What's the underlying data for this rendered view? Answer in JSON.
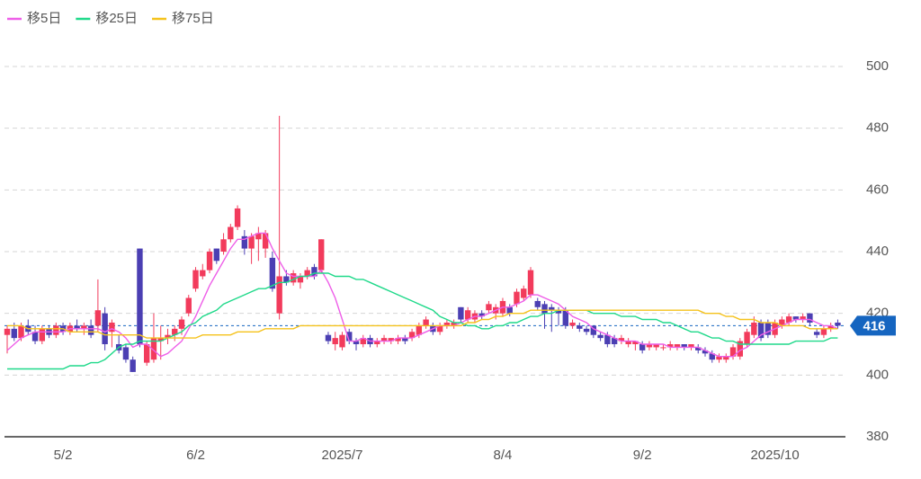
{
  "chart_data": {
    "type": "candlestick",
    "up_color": "#f23b5c",
    "down_color": "#4b3fb3",
    "ylim": [
      380,
      500
    ],
    "yticks": [
      380,
      400,
      420,
      440,
      460,
      480,
      500
    ],
    "grid": true,
    "current": 416,
    "current_color": "#1565c0",
    "categories": [
      null,
      null,
      null,
      null,
      null,
      null,
      null,
      null,
      "5/2",
      null,
      null,
      null,
      null,
      null,
      null,
      null,
      null,
      null,
      null,
      null,
      null,
      null,
      null,
      null,
      null,
      null,
      null,
      "6/2",
      null,
      null,
      null,
      null,
      null,
      null,
      null,
      null,
      null,
      null,
      null,
      null,
      null,
      null,
      null,
      null,
      null,
      null,
      null,
      null,
      "2025/7",
      null,
      null,
      null,
      null,
      null,
      null,
      null,
      null,
      null,
      null,
      null,
      null,
      null,
      null,
      null,
      null,
      null,
      null,
      null,
      null,
      null,
      null,
      "8/4",
      null,
      null,
      null,
      null,
      null,
      null,
      null,
      null,
      null,
      null,
      null,
      null,
      null,
      null,
      null,
      null,
      null,
      null,
      null,
      "9/2",
      null,
      null,
      null,
      null,
      null,
      null,
      null,
      null,
      null,
      null,
      null,
      null,
      null,
      null,
      null,
      null,
      null,
      null,
      "2025/10",
      null,
      null,
      null,
      null,
      null,
      null,
      null,
      null,
      null
    ],
    "ohlc": [
      [
        413,
        416,
        407,
        415
      ],
      [
        415,
        417,
        411,
        412
      ],
      [
        412,
        417,
        411,
        416
      ],
      [
        416,
        418,
        413,
        414
      ],
      [
        414,
        416,
        410,
        411
      ],
      [
        411,
        416,
        410,
        415
      ],
      [
        415,
        416,
        412,
        413
      ],
      [
        413,
        417,
        412,
        416
      ],
      [
        416,
        417,
        413,
        414
      ],
      [
        414,
        417,
        413,
        416
      ],
      [
        416,
        418,
        414,
        415
      ],
      [
        415,
        417,
        413,
        416
      ],
      [
        416,
        418,
        412,
        413
      ],
      [
        416,
        431,
        414,
        421
      ],
      [
        420,
        422,
        408,
        410
      ],
      [
        414,
        418,
        409,
        417
      ],
      [
        410,
        413,
        407,
        408
      ],
      [
        409,
        410,
        404,
        405
      ],
      [
        405,
        406,
        401,
        401
      ],
      [
        441,
        441,
        409,
        410
      ],
      [
        404,
        411,
        403,
        410
      ],
      [
        405,
        420,
        404,
        412
      ],
      [
        411,
        416,
        405,
        412
      ],
      [
        412,
        415,
        410,
        413
      ],
      [
        413,
        416,
        411,
        415
      ],
      [
        415,
        419,
        413,
        418
      ],
      [
        420,
        426,
        419,
        425
      ],
      [
        428,
        435,
        427,
        434
      ],
      [
        432,
        436,
        431,
        434
      ],
      [
        434,
        441,
        433,
        440
      ],
      [
        441,
        441,
        436,
        437
      ],
      [
        440,
        446,
        439,
        444
      ],
      [
        444,
        449,
        443,
        448
      ],
      [
        448,
        455,
        447,
        454
      ],
      [
        445,
        447,
        439,
        441
      ],
      [
        441,
        446,
        436,
        445
      ],
      [
        444,
        448,
        437,
        446
      ],
      [
        441,
        447,
        438,
        446
      ],
      [
        438,
        440,
        427,
        428
      ],
      [
        420,
        484,
        418,
        432
      ],
      [
        432,
        434,
        429,
        430
      ],
      [
        430,
        434,
        429,
        433
      ],
      [
        430,
        433,
        428,
        432
      ],
      [
        432,
        435,
        431,
        434
      ],
      [
        435,
        436,
        431,
        432
      ],
      [
        434,
        444,
        433,
        444
      ],
      [
        413,
        414,
        410,
        411
      ],
      [
        410,
        414,
        408,
        412
      ],
      [
        409,
        414,
        408,
        413
      ],
      [
        414,
        415,
        410,
        411
      ],
      [
        411,
        412,
        408,
        410
      ],
      [
        410,
        413,
        409,
        412
      ],
      [
        412,
        413,
        409,
        410
      ],
      [
        410,
        412,
        409,
        411
      ],
      [
        411,
        413,
        410,
        412
      ],
      [
        411,
        412,
        410,
        412
      ],
      [
        411,
        413,
        410,
        412
      ],
      [
        412,
        413,
        410,
        411
      ],
      [
        412,
        415,
        411,
        414
      ],
      [
        413,
        417,
        412,
        416
      ],
      [
        416,
        419,
        415,
        418
      ],
      [
        416,
        417,
        413,
        414
      ],
      [
        414,
        417,
        413,
        416
      ],
      [
        416,
        418,
        415,
        417
      ],
      [
        416,
        418,
        415,
        417
      ],
      [
        422,
        422,
        417,
        418
      ],
      [
        418,
        422,
        417,
        421
      ],
      [
        418,
        421,
        417,
        420
      ],
      [
        420,
        421,
        418,
        419
      ],
      [
        421,
        424,
        420,
        423
      ],
      [
        420,
        423,
        418,
        422
      ],
      [
        420,
        425,
        419,
        424
      ],
      [
        422,
        423,
        419,
        420
      ],
      [
        423,
        428,
        422,
        427
      ],
      [
        425,
        429,
        424,
        428
      ],
      [
        426,
        435,
        425,
        434
      ],
      [
        424,
        425,
        421,
        422
      ],
      [
        423,
        424,
        415,
        420
      ],
      [
        422,
        423,
        414,
        421
      ],
      [
        421,
        422,
        416,
        420
      ],
      [
        421,
        422,
        415,
        416
      ],
      [
        416,
        418,
        415,
        417
      ],
      [
        416,
        417,
        414,
        415
      ],
      [
        415,
        416,
        413,
        414
      ],
      [
        416,
        416,
        412,
        413
      ],
      [
        413,
        414,
        411,
        412
      ],
      [
        413,
        414,
        409,
        410
      ],
      [
        412,
        413,
        409,
        410
      ],
      [
        411,
        413,
        410,
        412
      ],
      [
        410,
        412,
        409,
        411
      ],
      [
        410,
        411,
        408,
        411
      ],
      [
        410,
        411,
        407,
        408
      ],
      [
        409,
        411,
        408,
        410
      ],
      [
        409,
        410,
        408,
        410
      ],
      [
        409,
        410,
        408,
        409
      ],
      [
        409,
        411,
        408,
        410
      ],
      [
        409,
        410,
        408,
        410
      ],
      [
        410,
        410,
        408,
        409
      ],
      [
        409,
        410,
        408,
        410
      ],
      [
        409,
        410,
        407,
        408
      ],
      [
        408,
        409,
        406,
        407
      ],
      [
        407,
        408,
        404,
        405
      ],
      [
        405,
        407,
        404,
        406
      ],
      [
        405,
        407,
        404,
        406
      ],
      [
        406,
        410,
        405,
        409
      ],
      [
        406,
        412,
        405,
        411
      ],
      [
        410,
        415,
        409,
        414
      ],
      [
        413,
        419,
        412,
        417
      ],
      [
        417,
        418,
        411,
        412
      ],
      [
        417,
        418,
        412,
        413
      ],
      [
        413,
        418,
        412,
        417
      ],
      [
        416,
        419,
        415,
        418
      ],
      [
        417,
        420,
        416,
        419
      ],
      [
        419,
        419,
        417,
        418
      ],
      [
        418,
        420,
        417,
        419
      ],
      [
        420,
        420,
        416,
        417
      ],
      [
        414,
        415,
        412,
        413
      ],
      [
        413,
        416,
        412,
        415
      ],
      [
        415,
        417,
        414,
        416
      ],
      [
        417,
        418,
        415,
        416
      ]
    ],
    "series": [
      {
        "name": "移5日",
        "color": "#ee5ee8",
        "values": [
          408,
          410,
          412,
          413,
          414,
          414,
          414,
          414,
          414,
          415,
          415,
          415,
          415,
          415,
          414,
          415,
          414,
          412,
          409,
          410,
          410,
          408,
          406,
          407,
          409,
          411,
          415,
          419,
          424,
          429,
          433,
          437,
          441,
          444,
          444,
          445,
          446,
          446,
          441,
          437,
          433,
          432,
          432,
          432,
          432,
          434,
          430,
          425,
          418,
          411,
          411,
          412,
          411,
          411,
          411,
          411,
          412,
          412,
          412,
          413,
          414,
          415,
          416,
          416,
          416,
          417,
          418,
          419,
          419,
          420,
          421,
          422,
          422,
          423,
          424,
          426,
          426,
          425,
          424,
          423,
          421,
          419,
          418,
          417,
          415,
          414,
          413,
          412,
          411,
          411,
          411,
          410,
          410,
          410,
          410,
          409,
          409,
          409,
          409,
          409,
          408,
          407,
          406,
          406,
          406,
          408,
          409,
          411,
          413,
          414,
          415,
          416,
          417,
          418,
          418,
          418,
          417,
          416,
          416,
          415
        ]
      },
      {
        "name": "移25日",
        "color": "#1fd98a",
        "values": [
          402,
          402,
          402,
          402,
          402,
          402,
          402,
          402,
          402,
          403,
          403,
          403,
          404,
          404,
          405,
          407,
          409,
          410,
          410,
          411,
          411,
          411,
          411,
          412,
          413,
          414,
          416,
          417,
          419,
          420,
          421,
          423,
          424,
          425,
          426,
          427,
          428,
          428,
          429,
          430,
          430,
          431,
          432,
          432,
          433,
          433,
          433,
          432,
          432,
          432,
          431,
          431,
          430,
          429,
          428,
          427,
          426,
          425,
          424,
          423,
          422,
          421,
          419,
          418,
          417,
          417,
          416,
          416,
          415,
          415,
          416,
          416,
          417,
          417,
          418,
          419,
          419,
          420,
          420,
          421,
          421,
          421,
          421,
          421,
          420,
          420,
          420,
          420,
          419,
          419,
          419,
          418,
          418,
          418,
          417,
          417,
          416,
          415,
          414,
          414,
          413,
          412,
          412,
          411,
          411,
          410,
          410,
          410,
          410,
          410,
          410,
          410,
          410,
          411,
          411,
          411,
          411,
          411,
          412,
          412
        ]
      },
      {
        "name": "移75日",
        "color": "#f5c21b",
        "values": [
          416,
          416,
          416,
          415,
          415,
          415,
          415,
          415,
          415,
          414,
          414,
          414,
          414,
          414,
          413,
          413,
          413,
          413,
          413,
          413,
          412,
          412,
          412,
          412,
          412,
          412,
          412,
          412,
          413,
          413,
          413,
          413,
          413,
          414,
          414,
          414,
          414,
          415,
          415,
          415,
          415,
          415,
          416,
          416,
          416,
          416,
          416,
          416,
          416,
          416,
          416,
          416,
          416,
          416,
          416,
          416,
          416,
          416,
          416,
          416,
          416,
          416,
          416,
          416,
          416,
          416,
          417,
          417,
          418,
          418,
          419,
          419,
          420,
          420,
          420,
          421,
          421,
          421,
          421,
          421,
          421,
          421,
          421,
          421,
          421,
          421,
          421,
          421,
          421,
          421,
          421,
          421,
          421,
          421,
          421,
          421,
          421,
          421,
          421,
          421,
          420,
          420,
          420,
          419,
          419,
          418,
          418,
          418,
          417,
          417,
          417,
          416,
          416,
          416,
          416,
          415,
          415,
          415,
          415,
          415
        ]
      }
    ]
  }
}
